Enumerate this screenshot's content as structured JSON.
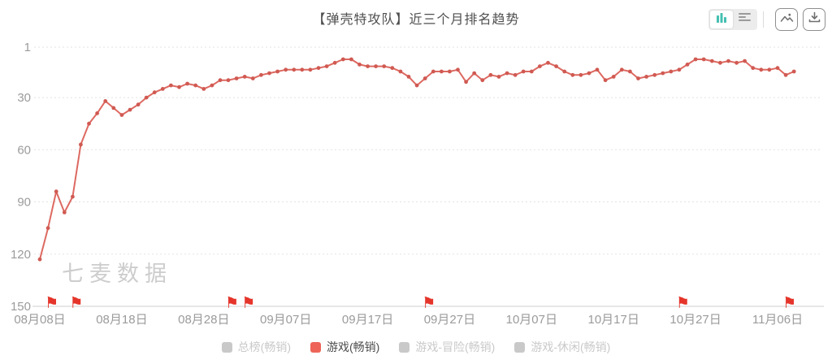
{
  "title": "【弹壳特攻队】近三个月排名趋势",
  "watermark": "七麦数据",
  "toolbar": {
    "icons": [
      "bar-chart-icon",
      "list-view-icon",
      "image-export-icon",
      "download-icon"
    ],
    "active_view": "chart",
    "accent_teal": "#45c0b2",
    "icon_gray": "#9a9a9a"
  },
  "legend": {
    "items": [
      {
        "label": "总榜(畅销)",
        "swatch": "#c9c9c9",
        "text": "#c9c9c9",
        "active": false
      },
      {
        "label": "游戏(畅销)",
        "swatch": "#ee6458",
        "text": "#4d4d4d",
        "active": true
      },
      {
        "label": "游戏-冒险(畅销)",
        "swatch": "#c9c9c9",
        "text": "#c9c9c9",
        "active": false
      },
      {
        "label": "游戏-休闲(畅销)",
        "swatch": "#c9c9c9",
        "text": "#c9c9c9",
        "active": false
      }
    ]
  },
  "chart_data": {
    "type": "line",
    "title": "【弹壳特攻队】近三个月排名趋势",
    "series_name": "游戏(畅销)",
    "line_color": "#dd6961",
    "dot_color": "#d05a52",
    "flag_color": "#e5352b",
    "axis_label_color": "#9b9b9b",
    "y_axis": {
      "ticks": [
        1,
        30,
        60,
        90,
        120,
        150
      ],
      "inverted": true,
      "range": [
        1,
        150
      ],
      "grid": "dashed"
    },
    "x_tick_labels": [
      "08月08日",
      "08月18日",
      "08月28日",
      "09月07日",
      "09月17日",
      "09月27日",
      "10月07日",
      "10月17日",
      "10月27日",
      "11月06日"
    ],
    "x_tick_day_indices": [
      0,
      10,
      20,
      30,
      40,
      50,
      60,
      70,
      80,
      90
    ],
    "legend_position": "bottom",
    "x_dates": [
      "08-08",
      "08-09",
      "08-10",
      "08-11",
      "08-12",
      "08-13",
      "08-14",
      "08-15",
      "08-16",
      "08-17",
      "08-18",
      "08-19",
      "08-20",
      "08-21",
      "08-22",
      "08-23",
      "08-24",
      "08-25",
      "08-26",
      "08-27",
      "08-28",
      "08-29",
      "08-30",
      "08-31",
      "09-01",
      "09-02",
      "09-03",
      "09-04",
      "09-05",
      "09-06",
      "09-07",
      "09-08",
      "09-09",
      "09-10",
      "09-11",
      "09-12",
      "09-13",
      "09-14",
      "09-15",
      "09-16",
      "09-17",
      "09-18",
      "09-19",
      "09-20",
      "09-21",
      "09-22",
      "09-23",
      "09-24",
      "09-25",
      "09-26",
      "09-27",
      "09-28",
      "09-29",
      "09-30",
      "10-01",
      "10-02",
      "10-03",
      "10-04",
      "10-05",
      "10-06",
      "10-07",
      "10-08",
      "10-09",
      "10-10",
      "10-11",
      "10-12",
      "10-13",
      "10-14",
      "10-15",
      "10-16",
      "10-17",
      "10-18",
      "10-19",
      "10-20",
      "10-21",
      "10-22",
      "10-23",
      "10-24",
      "10-25",
      "10-26",
      "10-27",
      "10-28",
      "10-29",
      "10-30",
      "10-31",
      "11-01",
      "11-02",
      "11-03",
      "11-04",
      "11-05",
      "11-06",
      "11-07",
      "11-08"
    ],
    "values": [
      123,
      105,
      84,
      96,
      87,
      57,
      45,
      39,
      32,
      36,
      40,
      37,
      34,
      30,
      27,
      25,
      23,
      24,
      22,
      23,
      25,
      23,
      20,
      20,
      19,
      18,
      19,
      17,
      16,
      15,
      14,
      14,
      14,
      14,
      13,
      12,
      10,
      8,
      8,
      11,
      12,
      12,
      12,
      13,
      15,
      18,
      23,
      19,
      15,
      15,
      15,
      14,
      21,
      16,
      20,
      17,
      18,
      16,
      17,
      15,
      15,
      12,
      10,
      12,
      15,
      17,
      17,
      16,
      14,
      20,
      18,
      14,
      15,
      19,
      18,
      17,
      16,
      15,
      14,
      11,
      8,
      8,
      9,
      10,
      9,
      10,
      9,
      13,
      14,
      14,
      13,
      17,
      15
    ],
    "flag_day_indices": [
      1,
      4,
      23,
      25,
      47,
      78,
      91
    ],
    "flag_dates": [
      "08-09",
      "08-12",
      "08-31",
      "09-02",
      "09-24",
      "10-25",
      "11-07"
    ]
  }
}
